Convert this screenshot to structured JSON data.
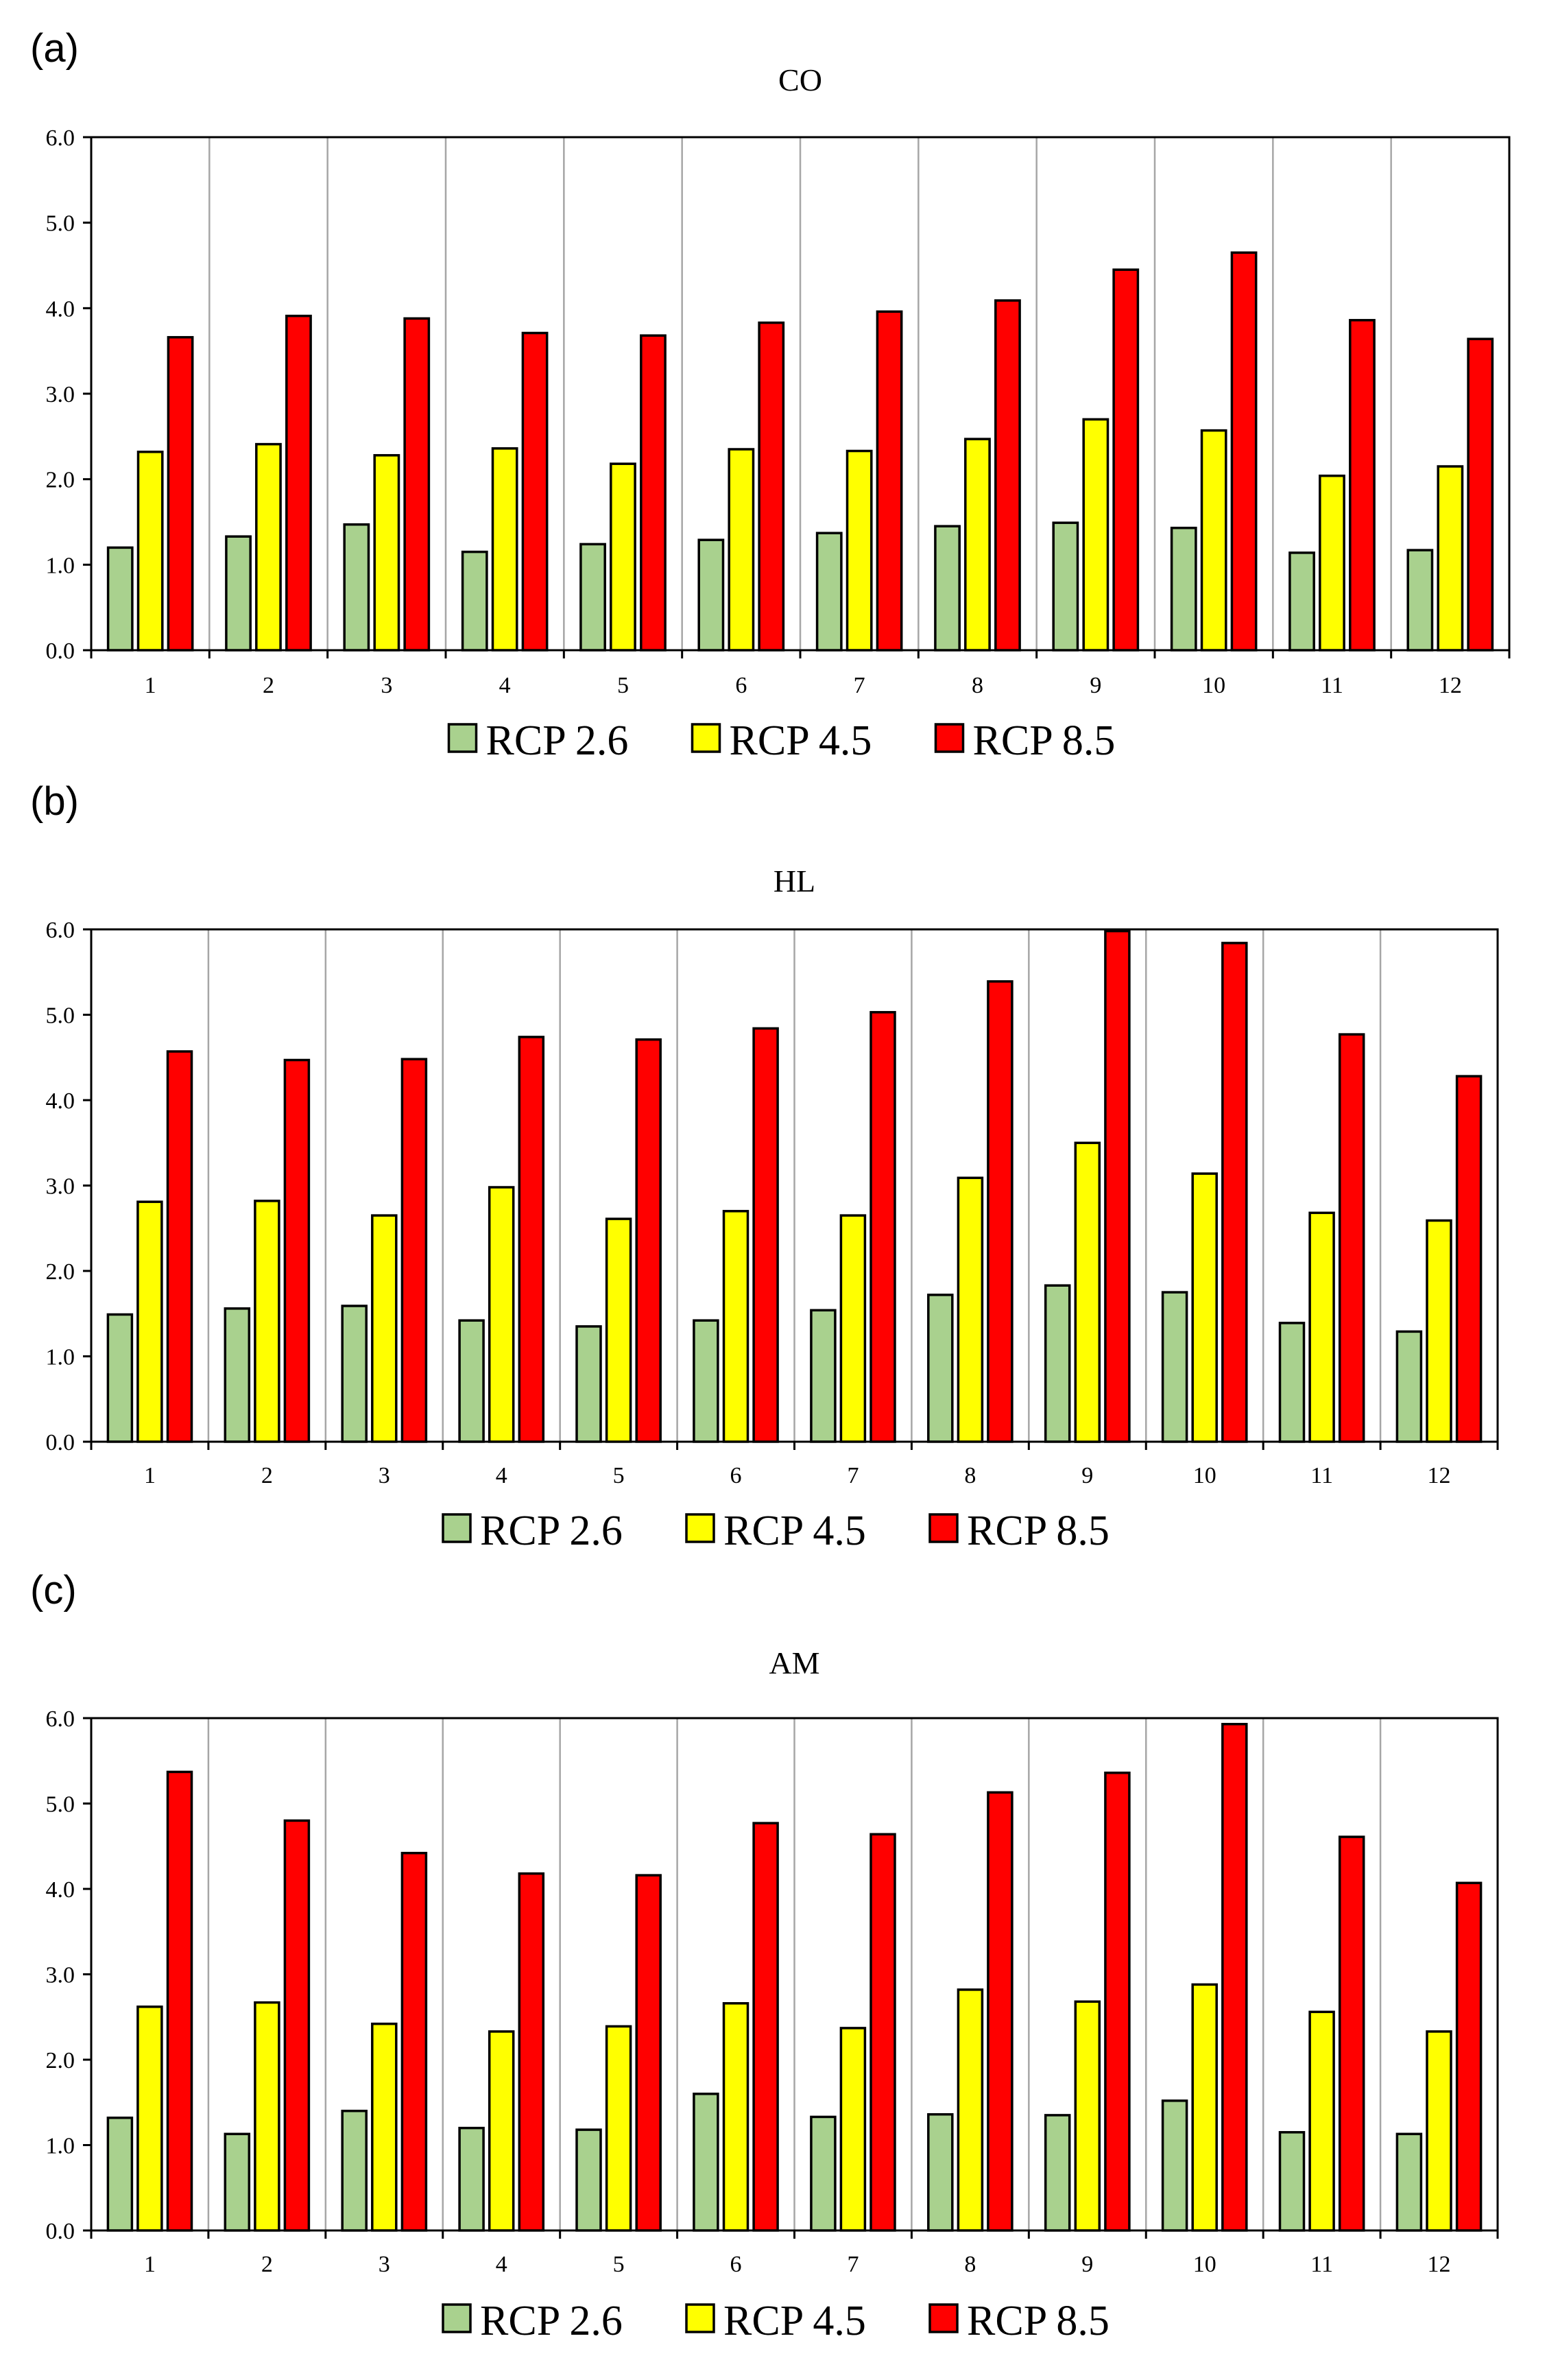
{
  "chart_data": [
    {
      "type": "bar",
      "panel_label": "(a)",
      "title": "CO",
      "categories": [
        "1",
        "2",
        "3",
        "4",
        "5",
        "6",
        "7",
        "8",
        "9",
        "10",
        "11",
        "12"
      ],
      "yticks": [
        "0.0",
        "1.0",
        "2.0",
        "3.0",
        "4.0",
        "5.0",
        "6.0"
      ],
      "ylim": [
        0,
        6
      ],
      "grid": "vertical",
      "legend_position": "bottom-center",
      "series": [
        {
          "name": "RCP 2.6",
          "color": "#a9d18e",
          "values": [
            1.2,
            1.33,
            1.47,
            1.15,
            1.24,
            1.29,
            1.37,
            1.45,
            1.49,
            1.43,
            1.14,
            1.17
          ]
        },
        {
          "name": "RCP 4.5",
          "color": "#ffff00",
          "values": [
            2.32,
            2.41,
            2.28,
            2.36,
            2.18,
            2.35,
            2.33,
            2.47,
            2.7,
            2.57,
            2.04,
            2.15
          ]
        },
        {
          "name": "RCP 8.5",
          "color": "#ff0000",
          "values": [
            3.66,
            3.91,
            3.88,
            3.71,
            3.68,
            3.83,
            3.96,
            4.09,
            4.45,
            4.65,
            3.86,
            3.64
          ]
        }
      ]
    },
    {
      "type": "bar",
      "panel_label": "(b)",
      "title": "HL",
      "categories": [
        "1",
        "2",
        "3",
        "4",
        "5",
        "6",
        "7",
        "8",
        "9",
        "10",
        "11",
        "12"
      ],
      "yticks": [
        "0.0",
        "1.0",
        "2.0",
        "3.0",
        "4.0",
        "5.0",
        "6.0"
      ],
      "ylim": [
        0,
        6
      ],
      "grid": "vertical",
      "legend_position": "bottom-center",
      "series": [
        {
          "name": "RCP 2.6",
          "color": "#a9d18e",
          "values": [
            1.49,
            1.56,
            1.59,
            1.42,
            1.35,
            1.42,
            1.54,
            1.72,
            1.83,
            1.75,
            1.39,
            1.29
          ]
        },
        {
          "name": "RCP 4.5",
          "color": "#ffff00",
          "values": [
            2.81,
            2.82,
            2.65,
            2.98,
            2.61,
            2.7,
            2.65,
            3.09,
            3.5,
            3.14,
            2.68,
            2.59
          ]
        },
        {
          "name": "RCP 8.5",
          "color": "#ff0000",
          "values": [
            4.57,
            4.47,
            4.48,
            4.74,
            4.71,
            4.84,
            5.03,
            5.39,
            5.98,
            5.84,
            4.77,
            4.28
          ]
        }
      ]
    },
    {
      "type": "bar",
      "panel_label": "(c)",
      "title": "AM",
      "categories": [
        "1",
        "2",
        "3",
        "4",
        "5",
        "6",
        "7",
        "8",
        "9",
        "10",
        "11",
        "12"
      ],
      "yticks": [
        "0.0",
        "1.0",
        "2.0",
        "3.0",
        "4.0",
        "5.0",
        "6.0"
      ],
      "ylim": [
        0,
        6
      ],
      "grid": "vertical",
      "legend_position": "bottom-center",
      "series": [
        {
          "name": "RCP 2.6",
          "color": "#a9d18e",
          "values": [
            1.32,
            1.13,
            1.4,
            1.2,
            1.18,
            1.6,
            1.33,
            1.36,
            1.35,
            1.52,
            1.15,
            1.13
          ]
        },
        {
          "name": "RCP 4.5",
          "color": "#ffff00",
          "values": [
            2.62,
            2.67,
            2.42,
            2.33,
            2.39,
            2.66,
            2.37,
            2.82,
            2.68,
            2.88,
            2.56,
            2.33
          ]
        },
        {
          "name": "RCP 8.5",
          "color": "#ff0000",
          "values": [
            5.37,
            4.8,
            4.42,
            4.18,
            4.16,
            4.77,
            4.64,
            5.13,
            5.36,
            5.93,
            4.61,
            4.07
          ]
        }
      ]
    }
  ]
}
